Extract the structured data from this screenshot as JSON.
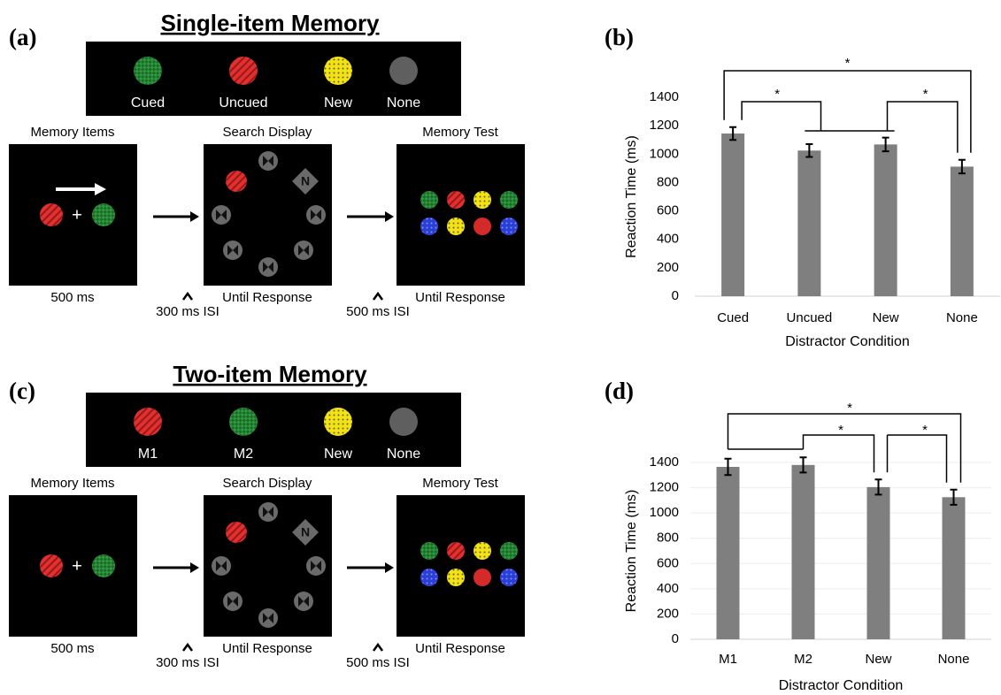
{
  "panel_labels": [
    "(a)",
    "(b)",
    "(c)",
    "(d)"
  ],
  "diagrams": [
    {
      "title": "Single-item Memory",
      "legend": [
        "Cued",
        "Uncued",
        "New",
        "None"
      ],
      "frames": [
        "Memory Items",
        "Search Display",
        "Memory Test"
      ],
      "durations": [
        "500 ms",
        "Until Response",
        "Until Response"
      ],
      "isis": [
        "300 ms ISI",
        "500 ms ISI"
      ],
      "fixation": "+",
      "search_target": "N"
    },
    {
      "title": "Two-item Memory",
      "legend": [
        "M1",
        "M2",
        "New",
        "None"
      ],
      "frames": [
        "Memory Items",
        "Search Display",
        "Memory Test"
      ],
      "durations": [
        "500 ms",
        "Until Response",
        "Until Response"
      ],
      "isis": [
        "300 ms ISI",
        "500 ms ISI"
      ],
      "fixation": "+",
      "search_target": "N"
    }
  ],
  "chart_data": [
    {
      "type": "bar",
      "categories": [
        "Cued",
        "Uncued",
        "New",
        "None"
      ],
      "values": [
        1145,
        1025,
        1068,
        912
      ],
      "errors": [
        45,
        45,
        48,
        48
      ],
      "xlabel": "Distractor Condition",
      "ylabel": "Reaction Time (ms)",
      "ylim": [
        0,
        1400
      ],
      "yticks": [
        0,
        200,
        400,
        600,
        800,
        1000,
        1200,
        1400
      ],
      "color": "#7f7f7f",
      "grid": false,
      "annotations": [
        "*",
        "*",
        "*"
      ]
    },
    {
      "type": "bar",
      "categories": [
        "M1",
        "M2",
        "New",
        "None"
      ],
      "values": [
        1365,
        1380,
        1205,
        1125
      ],
      "errors": [
        65,
        60,
        60,
        60
      ],
      "xlabel": "Distractor Condition",
      "ylabel": "Reaction Time (ms)",
      "ylim": [
        0,
        1400
      ],
      "yticks": [
        0,
        200,
        400,
        600,
        800,
        1000,
        1200,
        1400
      ],
      "color": "#7f7f7f",
      "grid": true,
      "annotations": [
        "*",
        "*",
        "*"
      ]
    }
  ]
}
